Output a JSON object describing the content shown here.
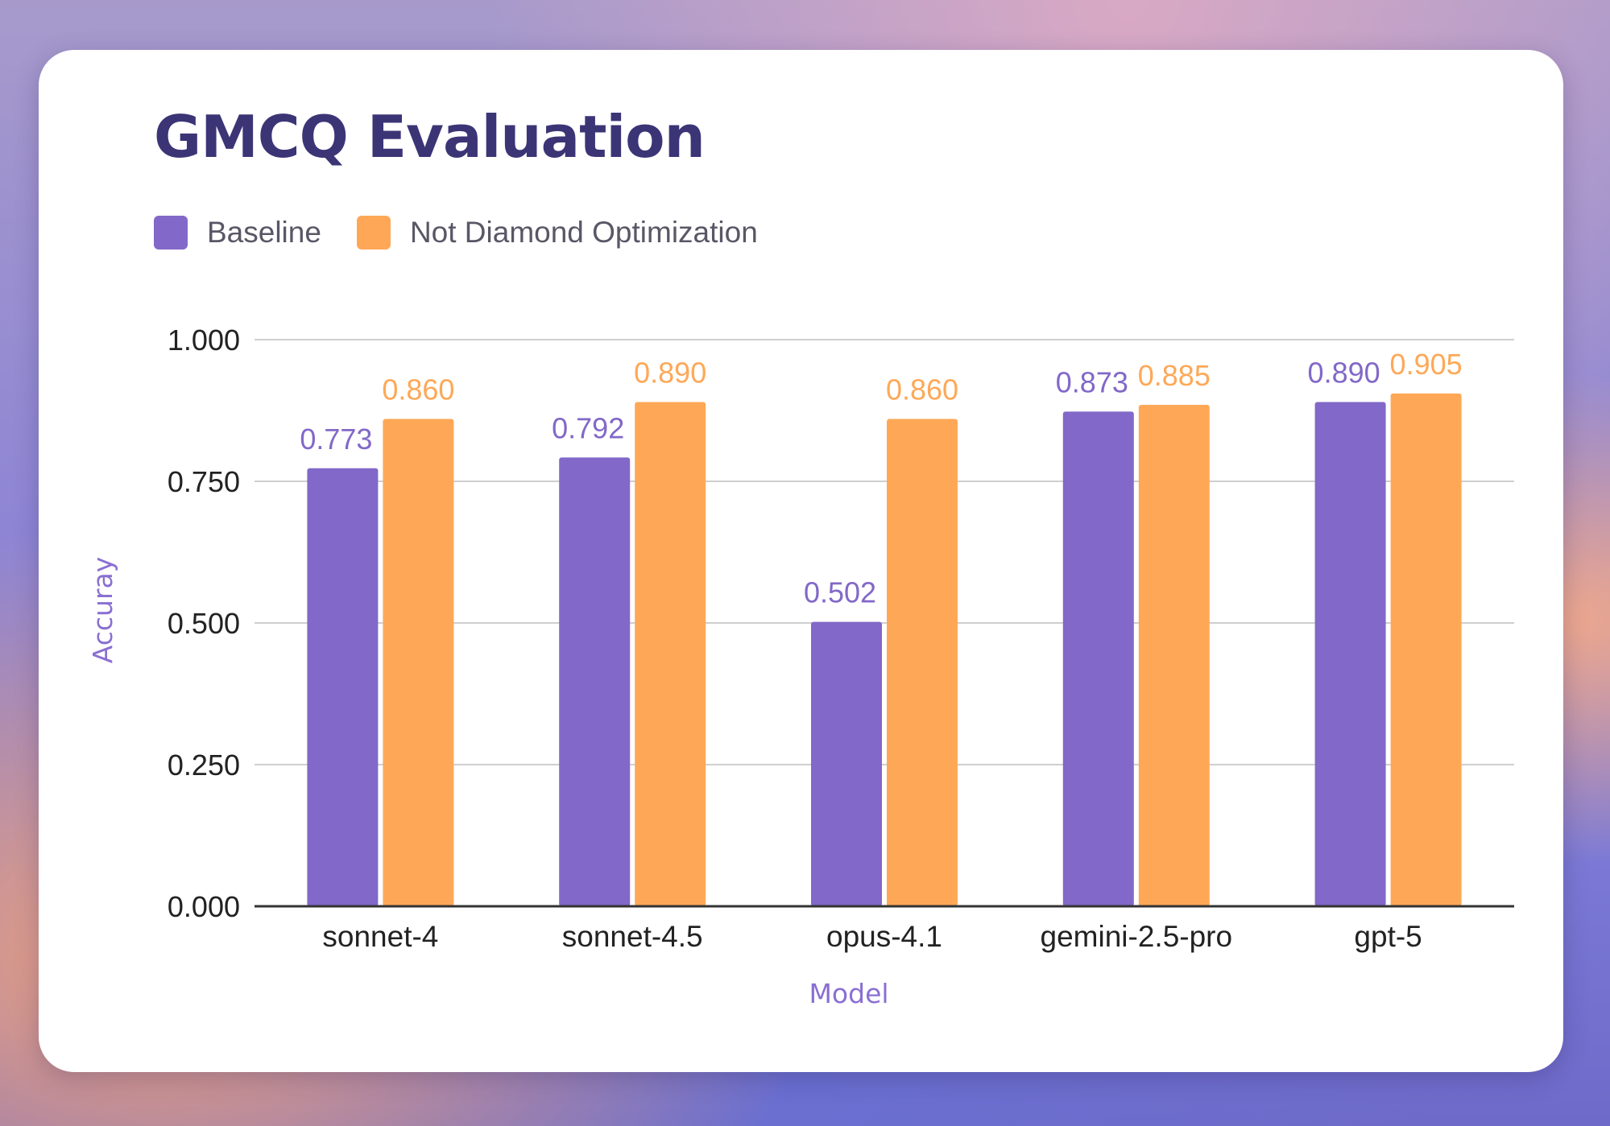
{
  "colors": {
    "baseline": "#8268c8",
    "optimized": "#fea857",
    "title": "#3b3576",
    "axis_title": "#8a6fd2"
  },
  "chart_data": {
    "type": "bar",
    "title": "GMCQ Evaluation",
    "xlabel": "Model",
    "ylabel": "Accuray",
    "ylim": [
      0,
      1
    ],
    "yticks": [
      "0.000",
      "0.250",
      "0.500",
      "0.750",
      "1.000"
    ],
    "categories": [
      "sonnet-4",
      "sonnet-4.5",
      "opus-4.1",
      "gemini-2.5-pro",
      "gpt-5"
    ],
    "series": [
      {
        "name": "Baseline",
        "values": [
          0.773,
          0.792,
          0.502,
          0.873,
          0.89
        ],
        "labels": [
          "0.773",
          "0.792",
          "0.502",
          "0.873",
          "0.890"
        ]
      },
      {
        "name": "Not Diamond Optimization",
        "values": [
          0.86,
          0.89,
          0.86,
          0.885,
          0.905
        ],
        "labels": [
          "0.860",
          "0.890",
          "0.860",
          "0.885",
          "0.905"
        ]
      }
    ],
    "legend_position": "top-left",
    "grid": true
  }
}
